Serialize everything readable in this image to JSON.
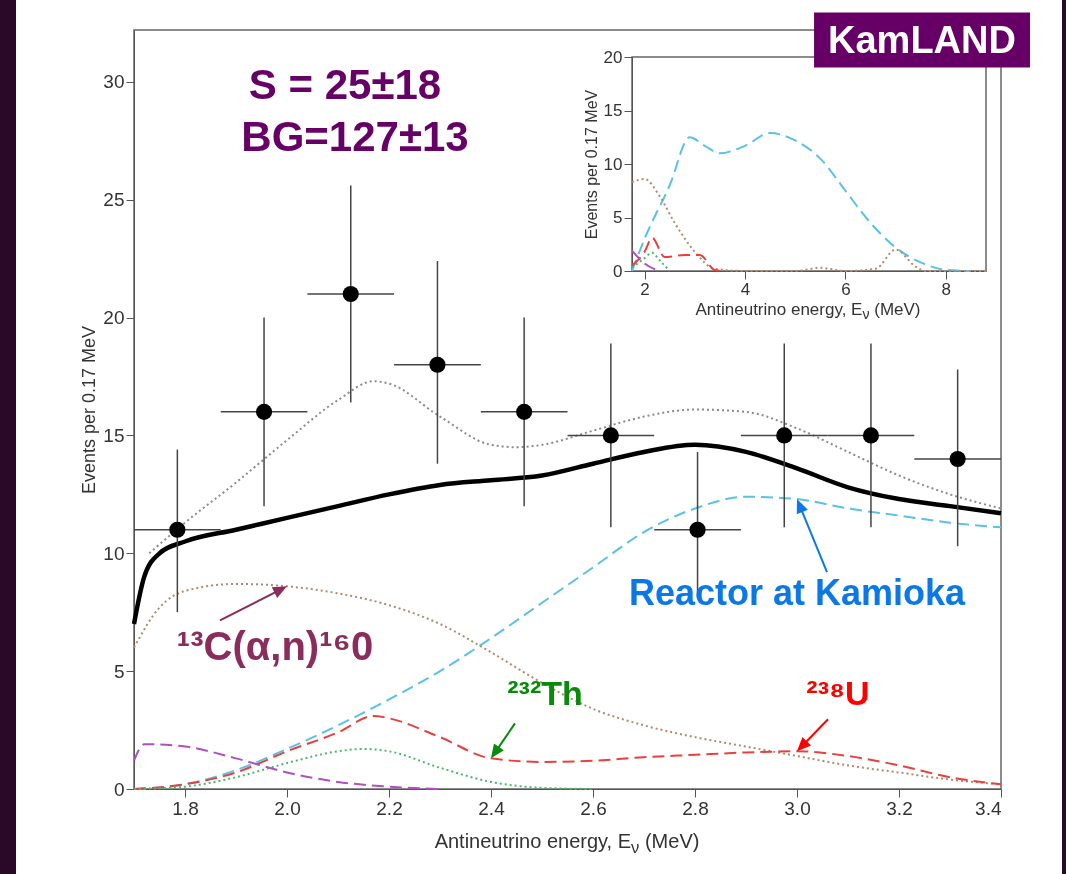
{
  "chart_data": [
    {
      "type": "line",
      "xlabel": "Antineutrino energy, E$_{ν}$ (MeV)",
      "ylabel": "Events per 0.17 MeV",
      "xlim": [
        1.7,
        3.4
      ],
      "ylim": [
        0,
        32.2
      ],
      "xticks": [
        1.8,
        {
          "value": 2,
          "label": "2.0"
        },
        2.2,
        2.4,
        2.6,
        2.8,
        {
          "value": 3,
          "label": "3.0"
        },
        3.2,
        3.4
      ],
      "yticks": [
        0,
        5,
        10,
        15,
        20,
        25,
        30
      ],
      "grid": false,
      "series": [
        {
          "color": "#000000",
          "line_style": "solid",
          "x": [
            1.7,
            1.72,
            1.75,
            1.8,
            1.9,
            2.0,
            2.1,
            2.2,
            2.3,
            2.4,
            2.5,
            2.6,
            2.7,
            2.8,
            2.9,
            3.0,
            3.1,
            3.2,
            3.3,
            3.4
          ],
          "values": [
            7.0,
            9.0,
            10.0,
            10.5,
            11.0,
            11.5,
            12.0,
            12.5,
            12.9,
            13.1,
            13.3,
            13.8,
            14.3,
            14.6,
            14.3,
            13.6,
            12.8,
            12.3,
            12.0,
            11.7
          ]
        },
        {
          "color": "#8a8a8a",
          "line_style": "dotted",
          "x": [
            1.73,
            1.8,
            1.9,
            2.0,
            2.1,
            2.17,
            2.2,
            2.3,
            2.4,
            2.45,
            2.5,
            2.6,
            2.7,
            2.8,
            2.9,
            3.0,
            3.1,
            3.2,
            3.3,
            3.4
          ],
          "values": [
            10.0,
            11.3,
            13.0,
            14.8,
            16.5,
            17.3,
            17.2,
            15.8,
            14.6,
            14.5,
            14.6,
            15.2,
            15.8,
            16.1,
            16.0,
            15.3,
            14.3,
            13.3,
            12.5,
            11.9
          ]
        },
        {
          "color": "#5bc0e8",
          "line_style": "dashed",
          "x": [
            1.7,
            1.8,
            1.9,
            2.0,
            2.1,
            2.2,
            2.3,
            2.4,
            2.5,
            2.6,
            2.7,
            2.8,
            2.9,
            3.0,
            3.1,
            3.2,
            3.3,
            3.4
          ],
          "values": [
            0,
            0.2,
            0.8,
            1.7,
            2.7,
            3.8,
            5.0,
            6.4,
            7.9,
            9.4,
            10.9,
            11.9,
            12.4,
            12.3,
            11.9,
            11.6,
            11.3,
            11.1
          ]
        },
        {
          "color": "#b08a6a",
          "line_style": "dotted",
          "x": [
            1.7,
            1.75,
            1.8,
            1.9,
            2.0,
            2.1,
            2.2,
            2.3,
            2.4,
            2.5,
            2.6,
            2.7,
            2.8,
            2.9,
            3.0,
            3.1,
            3.2,
            3.3,
            3.4
          ],
          "values": [
            6.0,
            7.7,
            8.4,
            8.7,
            8.6,
            8.3,
            7.8,
            7.0,
            5.8,
            4.5,
            3.4,
            2.7,
            2.2,
            1.8,
            1.4,
            1.0,
            0.7,
            0.4,
            0.2
          ]
        },
        {
          "color": "#e84040",
          "line_style": "dashed",
          "x": [
            1.7,
            1.8,
            1.9,
            2.0,
            2.1,
            2.17,
            2.2,
            2.3,
            2.4,
            2.5,
            2.6,
            2.7,
            2.8,
            2.9,
            3.0,
            3.1,
            3.2,
            3.3,
            3.4
          ],
          "values": [
            0,
            0.2,
            0.7,
            1.6,
            2.4,
            3.1,
            3.0,
            2.2,
            1.3,
            1.15,
            1.2,
            1.35,
            1.45,
            1.55,
            1.6,
            1.4,
            1.0,
            0.5,
            0.2
          ]
        },
        {
          "color": "#4cb86a",
          "line_style": "dotted",
          "x": [
            1.7,
            1.8,
            1.9,
            2.0,
            2.1,
            2.15,
            2.2,
            2.3,
            2.4,
            2.5,
            2.6
          ],
          "values": [
            0,
            0.1,
            0.5,
            1.1,
            1.6,
            1.7,
            1.6,
            0.9,
            0.3,
            0.05,
            0
          ]
        },
        {
          "color": "#b050c0",
          "line_style": "dashed",
          "x": [
            1.7,
            1.72,
            1.8,
            1.9,
            2.0,
            2.1,
            2.2,
            2.3
          ],
          "values": [
            1.2,
            1.9,
            1.8,
            1.3,
            0.7,
            0.3,
            0.1,
            0
          ]
        },
        {
          "type": "scatter",
          "color": "#000000",
          "marker": "circle",
          "x": [
            1.785,
            1.955,
            2.125,
            2.295,
            2.465,
            2.635,
            2.805,
            2.975,
            3.145,
            3.315
          ],
          "values": [
            11,
            16,
            21,
            18,
            16,
            15,
            11,
            15,
            15,
            14
          ],
          "errors": [
            [
              7.5,
              14.4
            ],
            [
              12.0,
              20.0
            ],
            [
              16.4,
              25.6
            ],
            [
              13.8,
              22.4
            ],
            [
              12.0,
              20.0
            ],
            [
              11.1,
              18.9
            ],
            [
              8.1,
              14.3
            ],
            [
              11.1,
              18.9
            ],
            [
              11.1,
              18.9
            ],
            [
              10.3,
              17.8
            ]
          ],
          "xerrors": [
            0.085,
            0.085,
            0.085,
            0.085,
            0.085,
            0.085,
            0.085,
            0.085,
            0.085,
            0.085
          ]
        }
      ],
      "annotations": [
        "S  =  25±18",
        "BG=127±13",
        "KamLAND",
        {
          "text": "¹³C(α,n)¹⁶0",
          "x": 2.0,
          "y": 8.6
        },
        {
          "text": "²³²Th",
          "x": 2.4,
          "y": 1.3
        },
        {
          "text": "²³⁸U",
          "x": 3.0,
          "y": 1.6
        },
        {
          "text": "Reactor at Kamioka",
          "x": 3.0,
          "y": 12.3
        }
      ]
    },
    {
      "type": "line",
      "xlabel": "Antineutrino energy, E$_{ν}$ (MeV)",
      "ylabel": "Events per 0.17 MeV",
      "xlim": [
        1.75,
        8.8
      ],
      "ylim": [
        0,
        20
      ],
      "xticks": [
        2,
        4,
        6,
        8
      ],
      "yticks": [
        0,
        5,
        10,
        15,
        20
      ],
      "grid": false,
      "series": [
        {
          "color": "#5bc0e8",
          "line_style": "dashed",
          "x": [
            1.75,
            2,
            2.5,
            2.9,
            3.2,
            3.5,
            4,
            4.5,
            5,
            5.5,
            6,
            6.5,
            7,
            7.5,
            8,
            8.5
          ],
          "values": [
            0,
            3,
            8,
            12.5,
            11.7,
            11.0,
            11.7,
            12.9,
            12.2,
            10.5,
            7.5,
            4.5,
            2.2,
            0.8,
            0.1,
            0
          ]
        },
        {
          "color": "#b08a6a",
          "line_style": "dotted",
          "x": [
            1.75,
            2,
            2.3,
            2.6,
            3,
            3.4,
            4,
            5,
            5.5,
            6,
            6.6,
            7,
            7.4,
            7.6,
            8.8
          ],
          "values": [
            8.3,
            8.6,
            7,
            4.5,
            1.8,
            0.2,
            0,
            0,
            0.3,
            0,
            0.2,
            2.0,
            0.4,
            0,
            0
          ]
        },
        {
          "color": "#e84040",
          "line_style": "dashed",
          "x": [
            1.75,
            2,
            2.15,
            2.4,
            2.8,
            3.1,
            3.4,
            3.6
          ],
          "values": [
            0.5,
            1.8,
            3.1,
            1.3,
            1.5,
            1.5,
            0.1,
            0
          ]
        },
        {
          "color": "#4cb86a",
          "line_style": "dotted",
          "x": [
            1.75,
            2,
            2.15,
            2.3,
            2.5
          ],
          "values": [
            0.3,
            1.2,
            1.7,
            1,
            0
          ]
        },
        {
          "color": "#b050c0",
          "line_style": "dashed",
          "x": [
            1.75,
            2,
            2.3
          ],
          "values": [
            1.9,
            0.7,
            0
          ]
        }
      ]
    }
  ]
}
